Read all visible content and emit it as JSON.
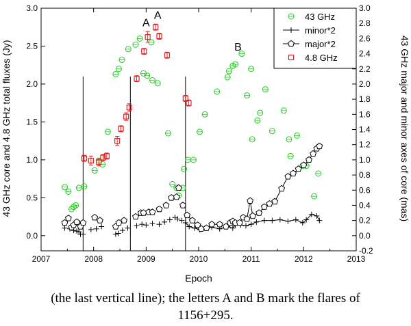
{
  "chart_data": {
    "type": "scatter",
    "xlabel": "Epoch",
    "ylabel_left": "43 GHz core and 4.8 GHz total fluxes (Jy)",
    "ylabel_right": "43 GHz major and minor axes of core (mas)",
    "xlim": [
      2007,
      2013
    ],
    "ylim_left": [
      -0.2,
      3.0
    ],
    "ylim_right": [
      -0.2,
      3.0
    ],
    "xticks": [
      2007,
      2008,
      2009,
      2010,
      2011,
      2012,
      2013
    ],
    "xtick_labels": [
      "2007",
      "2008",
      "2009",
      "2010",
      "2011",
      "2012",
      "2013"
    ],
    "yticks_left": [
      0.0,
      0.5,
      1.0,
      1.5,
      2.0,
      2.5,
      3.0
    ],
    "ytick_labels_left": [
      "0.0",
      "0.5",
      "1.0",
      "1.5",
      "2.0",
      "2.5",
      "3.0"
    ],
    "yticks_right": [
      -0.2,
      0.0,
      0.2,
      0.4,
      0.6,
      0.8,
      1.0,
      1.2,
      1.4,
      1.6,
      1.8,
      2.0,
      2.2,
      2.4,
      2.6,
      2.8,
      3.0
    ],
    "ytick_labels_right": [
      "-0.2",
      "0.0",
      "0.2",
      "0.4",
      "0.6",
      "0.8",
      "1.0",
      "1.2",
      "1.4",
      "1.6",
      "1.8",
      "2.0",
      "2.2",
      "2.4",
      "2.6",
      "2.8",
      "3.0"
    ],
    "legend": [
      {
        "name": "43 GHz",
        "marker": "circle",
        "color": "#22cc22"
      },
      {
        "name": "minor*2",
        "marker": "plus",
        "color": "#000000"
      },
      {
        "name": "major*2",
        "marker": "pentagon",
        "color": "#000000"
      },
      {
        "name": "4.8 GHz",
        "marker": "square",
        "color": "#dd2222"
      }
    ],
    "vlines": [
      2007.8,
      2008.7,
      2009.75
    ],
    "vline_top": 2.1,
    "annotations": [
      {
        "text": "A",
        "x": 2009.0,
        "y": 2.76
      },
      {
        "text": "A",
        "x": 2009.22,
        "y": 2.86
      },
      {
        "text": "B",
        "x": 2010.75,
        "y": 2.44
      }
    ],
    "series": [
      {
        "name": "43 GHz",
        "points": [
          [
            2007.45,
            0.64
          ],
          [
            2007.52,
            0.58
          ],
          [
            2007.58,
            0.35
          ],
          [
            2007.62,
            0.38
          ],
          [
            2007.66,
            0.4
          ],
          [
            2007.72,
            0.63
          ],
          [
            2007.82,
            0.65
          ],
          [
            2008.02,
            0.86
          ],
          [
            2008.1,
            0.99
          ],
          [
            2008.17,
            0.94
          ],
          [
            2008.27,
            1.37
          ],
          [
            2008.42,
            2.13
          ],
          [
            2008.48,
            2.2
          ],
          [
            2008.54,
            2.32
          ],
          [
            2008.66,
            2.46
          ],
          [
            2008.8,
            2.52
          ],
          [
            2008.88,
            2.6
          ],
          [
            2008.95,
            2.14
          ],
          [
            2009.02,
            2.11
          ],
          [
            2009.1,
            2.55
          ],
          [
            2009.12,
            2.05
          ],
          [
            2009.22,
            2.01
          ],
          [
            2009.42,
            1.35
          ],
          [
            2009.5,
            0.68
          ],
          [
            2009.58,
            0.63
          ],
          [
            2009.62,
            0.53
          ],
          [
            2009.7,
            0.63
          ],
          [
            2009.72,
            0.88
          ],
          [
            2009.8,
            1.0
          ],
          [
            2009.9,
            1.0
          ],
          [
            2010.02,
            1.37
          ],
          [
            2010.12,
            1.6
          ],
          [
            2010.35,
            1.9
          ],
          [
            2010.55,
            2.09
          ],
          [
            2010.58,
            2.17
          ],
          [
            2010.65,
            2.24
          ],
          [
            2010.7,
            2.26
          ],
          [
            2010.82,
            2.4
          ],
          [
            2010.92,
            1.85
          ],
          [
            2011.0,
            2.2
          ],
          [
            2011.02,
            1.27
          ],
          [
            2011.12,
            1.52
          ],
          [
            2011.17,
            1.62
          ],
          [
            2011.27,
            1.93
          ],
          [
            2011.4,
            1.38
          ],
          [
            2011.62,
            1.65
          ],
          [
            2011.72,
            1.27
          ],
          [
            2011.75,
            1.05
          ],
          [
            2011.87,
            1.32
          ],
          [
            2011.98,
            0.92
          ],
          [
            2012.05,
            0.92
          ],
          [
            2012.2,
            0.52
          ],
          [
            2012.28,
            0.82
          ]
        ]
      },
      {
        "name": "4.8 GHz",
        "points": [
          [
            2007.82,
            1.02,
            0.04
          ],
          [
            2007.95,
            0.99,
            0.06
          ],
          [
            2008.1,
            0.97,
            0.05
          ],
          [
            2008.18,
            1.03,
            0.04
          ],
          [
            2008.25,
            1.05,
            0.04
          ],
          [
            2008.45,
            1.25,
            0.06
          ],
          [
            2008.52,
            1.41,
            0.04
          ],
          [
            2008.62,
            1.57,
            0.05
          ],
          [
            2008.68,
            1.69,
            0.05
          ],
          [
            2008.82,
            2.07,
            0.04
          ],
          [
            2008.96,
            2.43,
            0.04
          ],
          [
            2009.03,
            2.62,
            0.07
          ],
          [
            2009.18,
            2.75,
            0.04
          ],
          [
            2009.25,
            2.63,
            0.04
          ],
          [
            2009.4,
            2.38,
            0.04
          ],
          [
            2009.75,
            1.81,
            0.04
          ],
          [
            2009.81,
            1.75,
            0.04
          ]
        ]
      },
      {
        "name": "minor*2",
        "connected_from": 2009.75,
        "points": [
          [
            2007.45,
            0.1
          ],
          [
            2007.55,
            0.09
          ],
          [
            2007.62,
            0.07
          ],
          [
            2007.68,
            0.06
          ],
          [
            2007.72,
            0.05
          ],
          [
            2007.75,
            0.02
          ],
          [
            2007.8,
            0.02
          ],
          [
            2007.95,
            0.08
          ],
          [
            2008.05,
            0.09
          ],
          [
            2008.15,
            0.12
          ],
          [
            2008.42,
            0.02
          ],
          [
            2008.47,
            0.03
          ],
          [
            2008.55,
            0.07
          ],
          [
            2008.65,
            0.1
          ],
          [
            2008.82,
            0.13
          ],
          [
            2008.92,
            0.15
          ],
          [
            2009.0,
            0.14
          ],
          [
            2009.12,
            0.16
          ],
          [
            2009.25,
            0.15
          ],
          [
            2009.35,
            0.18
          ],
          [
            2009.45,
            0.21
          ],
          [
            2009.55,
            0.24
          ],
          [
            2009.6,
            0.22
          ],
          [
            2009.68,
            0.2
          ],
          [
            2009.75,
            0.17
          ],
          [
            2009.82,
            0.12
          ],
          [
            2009.92,
            0.1
          ],
          [
            2010.02,
            0.08
          ],
          [
            2010.12,
            0.1
          ],
          [
            2010.25,
            0.11
          ],
          [
            2010.4,
            0.09
          ],
          [
            2010.55,
            0.12
          ],
          [
            2010.65,
            0.1
          ],
          [
            2010.7,
            0.14
          ],
          [
            2010.8,
            0.14
          ],
          [
            2010.9,
            0.13
          ],
          [
            2011.0,
            0.15
          ],
          [
            2011.1,
            0.18
          ],
          [
            2011.25,
            0.2
          ],
          [
            2011.4,
            0.2
          ],
          [
            2011.55,
            0.21
          ],
          [
            2011.7,
            0.19
          ],
          [
            2011.85,
            0.21
          ],
          [
            2011.98,
            0.17
          ],
          [
            2012.05,
            0.21
          ],
          [
            2012.15,
            0.28
          ],
          [
            2012.25,
            0.26
          ],
          [
            2012.3,
            0.2
          ]
        ]
      },
      {
        "name": "major*2",
        "connected_from": 2009.75,
        "points": [
          [
            2007.45,
            0.17
          ],
          [
            2007.52,
            0.23
          ],
          [
            2007.58,
            0.11
          ],
          [
            2007.62,
            0.14
          ],
          [
            2007.68,
            0.18
          ],
          [
            2007.75,
            0.12
          ],
          [
            2007.8,
            0.17
          ],
          [
            2008.02,
            0.24
          ],
          [
            2008.12,
            0.2
          ],
          [
            2008.42,
            0.12
          ],
          [
            2008.48,
            0.17
          ],
          [
            2008.58,
            0.2
          ],
          [
            2008.8,
            0.25
          ],
          [
            2008.9,
            0.3
          ],
          [
            2008.95,
            0.3
          ],
          [
            2009.05,
            0.31
          ],
          [
            2009.12,
            0.31
          ],
          [
            2009.25,
            0.35
          ],
          [
            2009.38,
            0.4
          ],
          [
            2009.48,
            0.5
          ],
          [
            2009.58,
            0.51
          ],
          [
            2009.62,
            0.63
          ],
          [
            2009.7,
            0.4
          ],
          [
            2009.78,
            0.27
          ],
          [
            2009.88,
            0.2
          ],
          [
            2009.98,
            0.14
          ],
          [
            2010.05,
            0.09
          ],
          [
            2010.15,
            0.1
          ],
          [
            2010.25,
            0.15
          ],
          [
            2010.4,
            0.15
          ],
          [
            2010.52,
            0.12
          ],
          [
            2010.6,
            0.17
          ],
          [
            2010.65,
            0.19
          ],
          [
            2010.7,
            0.17
          ],
          [
            2010.78,
            0.17
          ],
          [
            2010.85,
            0.24
          ],
          [
            2010.92,
            0.22
          ],
          [
            2010.98,
            0.46
          ],
          [
            2011.03,
            0.26
          ],
          [
            2011.15,
            0.3
          ],
          [
            2011.25,
            0.38
          ],
          [
            2011.35,
            0.42
          ],
          [
            2011.45,
            0.45
          ],
          [
            2011.58,
            0.62
          ],
          [
            2011.7,
            0.78
          ],
          [
            2011.8,
            0.82
          ],
          [
            2011.9,
            0.88
          ],
          [
            2012.0,
            0.93
          ],
          [
            2012.1,
            1.0
          ],
          [
            2012.18,
            1.08
          ],
          [
            2012.25,
            1.15
          ],
          [
            2012.3,
            1.18
          ]
        ]
      }
    ]
  },
  "caption": {
    "line1": "(the last vertical line); the letters A and B mark the flares of",
    "line2": "1156+295."
  }
}
